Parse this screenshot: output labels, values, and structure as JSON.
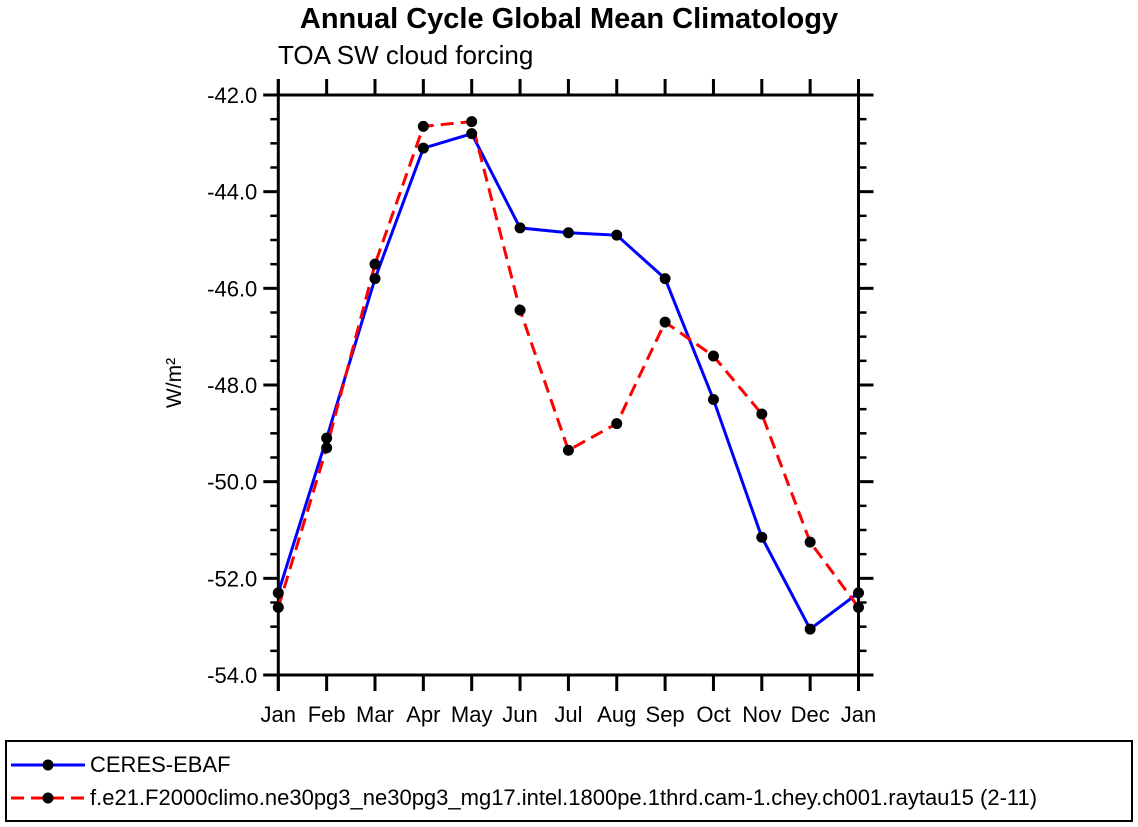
{
  "page": {
    "title": "Annual Cycle Global Mean Climatology",
    "subtitle": "TOA SW cloud forcing"
  },
  "chart_data": {
    "type": "line",
    "title": "Annual Cycle Global Mean Climatology",
    "subtitle": "TOA SW cloud forcing",
    "xlabel": "",
    "ylabel": "W/m²",
    "categories": [
      "Jan",
      "Feb",
      "Mar",
      "Apr",
      "May",
      "Jun",
      "Jul",
      "Aug",
      "Sep",
      "Oct",
      "Nov",
      "Dec",
      "Jan"
    ],
    "ylim": [
      -54.0,
      -42.0
    ],
    "ytick_major_interval": 2.0,
    "ytick_minor_interval": 0.5,
    "ytick_labels": [
      "-42.0",
      "-44.0",
      "-46.0",
      "-48.0",
      "-50.0",
      "-52.0",
      "-54.0"
    ],
    "grid": false,
    "legend_position": "bottom",
    "axis_color": "#000000",
    "series": [
      {
        "name": "CERES-EBAF",
        "color": "#0000ff",
        "style": "solid",
        "marker": "circle",
        "marker_color": "#000000",
        "values": [
          -52.3,
          -49.1,
          -45.8,
          -43.1,
          -42.8,
          -44.75,
          -44.85,
          -44.9,
          -45.8,
          -48.3,
          -51.15,
          -53.05,
          -52.3
        ]
      },
      {
        "name": "f.e21.F2000climo.ne30pg3_ne30pg3_mg17.intel.1800pe.1thrd.cam-1.chey.ch001.raytau15 (2-11)",
        "color": "#ff0000",
        "style": "dashed",
        "marker": "circle",
        "marker_color": "#000000",
        "values": [
          -52.6,
          -49.3,
          -45.5,
          -42.65,
          -42.55,
          -46.45,
          -49.35,
          -48.8,
          -46.7,
          -47.4,
          -48.6,
          -51.25,
          -52.6
        ]
      }
    ]
  }
}
